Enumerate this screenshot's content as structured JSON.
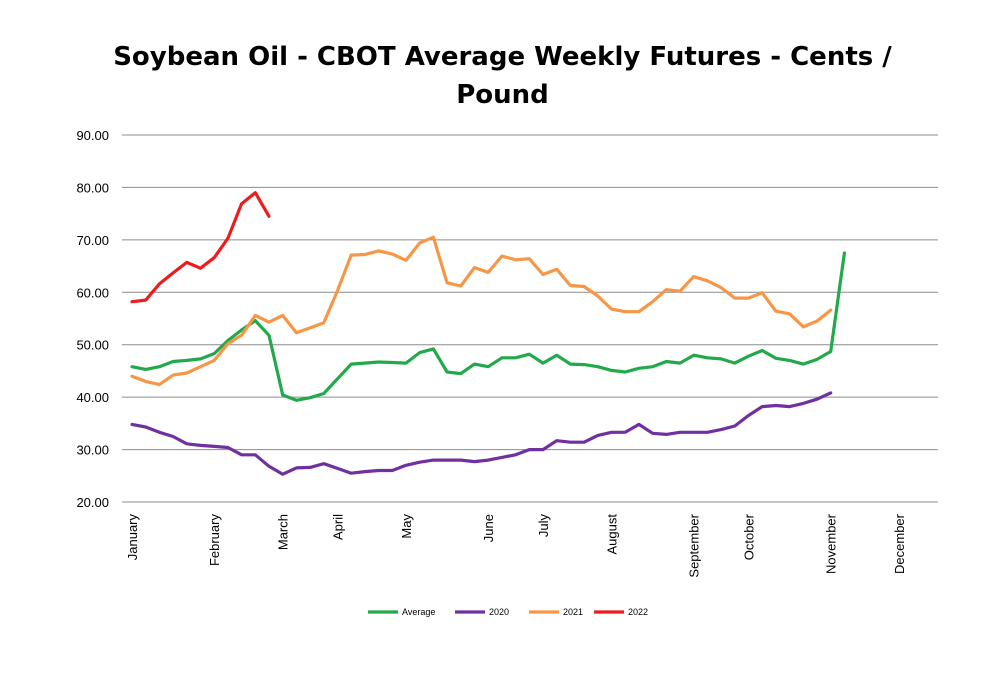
{
  "chart_data": {
    "type": "line",
    "title_line1": "Soybean Oil - CBOT Average Weekly Futures - Cents /",
    "title_line2": "Pound",
    "xlabel": "",
    "ylabel": "",
    "ylim": [
      20,
      90
    ],
    "y_ticks": [
      "20.00",
      "30.00",
      "40.00",
      "50.00",
      "60.00",
      "70.00",
      "80.00",
      "90.00"
    ],
    "x_weeks": 53,
    "x_tick_labels": [
      {
        "label": "January",
        "week": 1
      },
      {
        "label": "February",
        "week": 7
      },
      {
        "label": "March",
        "week": 12
      },
      {
        "label": "April",
        "week": 16
      },
      {
        "label": "May",
        "week": 21
      },
      {
        "label": "June",
        "week": 27
      },
      {
        "label": "July",
        "week": 31
      },
      {
        "label": "August",
        "week": 36
      },
      {
        "label": "September",
        "week": 42
      },
      {
        "label": "October",
        "week": 46
      },
      {
        "label": "November",
        "week": 52
      },
      {
        "label": "December",
        "week": 57
      }
    ],
    "grid": true,
    "legend_position": "bottom",
    "series": [
      {
        "name": "Average",
        "color": "#22a94b",
        "values": [
          45.8,
          45.3,
          45.8,
          46.8,
          47.0,
          47.3,
          48.3,
          50.8,
          52.8,
          54.6,
          51.8,
          40.4,
          39.4,
          39.9,
          40.7,
          43.5,
          46.3,
          46.5,
          46.7,
          46.6,
          46.5,
          48.5,
          49.2,
          44.8,
          44.5,
          46.3,
          45.8,
          47.5,
          47.5,
          48.2,
          46.5,
          48.0,
          46.3,
          46.2,
          45.8,
          45.1,
          44.8,
          45.5,
          45.8,
          46.8,
          46.5,
          48.0,
          47.5,
          47.3,
          46.5,
          47.8,
          48.9,
          47.4,
          47.0,
          46.3,
          47.2,
          48.7,
          67.5
        ]
      },
      {
        "name": "2020",
        "color": "#7030a0",
        "values": [
          34.8,
          34.3,
          33.3,
          32.5,
          31.1,
          30.8,
          30.6,
          30.4,
          29.0,
          29.0,
          26.8,
          25.3,
          26.5,
          26.6,
          27.3,
          26.4,
          25.5,
          25.8,
          26.0,
          26.0,
          27.0,
          27.6,
          28.0,
          28.0,
          28.0,
          27.7,
          28.0,
          28.5,
          29.0,
          30.0,
          30.0,
          31.7,
          31.4,
          31.4,
          32.7,
          33.3,
          33.3,
          34.8,
          33.1,
          32.9,
          33.3,
          33.3,
          33.3,
          33.8,
          34.5,
          36.5,
          38.2,
          38.4,
          38.2,
          38.8,
          39.6,
          40.8
        ]
      },
      {
        "name": "2021",
        "color": "#f79646",
        "values": [
          44.0,
          43.0,
          42.4,
          44.2,
          44.6,
          45.8,
          47.0,
          50.2,
          51.8,
          55.6,
          54.3,
          55.6,
          52.3,
          53.2,
          54.2,
          60.3,
          67.1,
          67.2,
          67.9,
          67.3,
          66.1,
          69.4,
          70.5,
          61.8,
          61.2,
          64.7,
          63.8,
          66.9,
          66.2,
          66.4,
          63.4,
          64.4,
          61.3,
          61.1,
          59.3,
          56.8,
          56.3,
          56.3,
          58.2,
          60.5,
          60.2,
          63.0,
          62.2,
          60.9,
          58.9,
          58.9,
          59.9,
          56.4,
          55.9,
          53.4,
          54.5,
          56.6
        ]
      },
      {
        "name": "2022",
        "color": "#ee1c1c",
        "values": [
          58.2,
          58.5,
          61.6,
          63.7,
          65.7,
          64.6,
          66.6,
          70.3,
          76.9,
          79.0,
          74.5
        ]
      }
    ]
  }
}
